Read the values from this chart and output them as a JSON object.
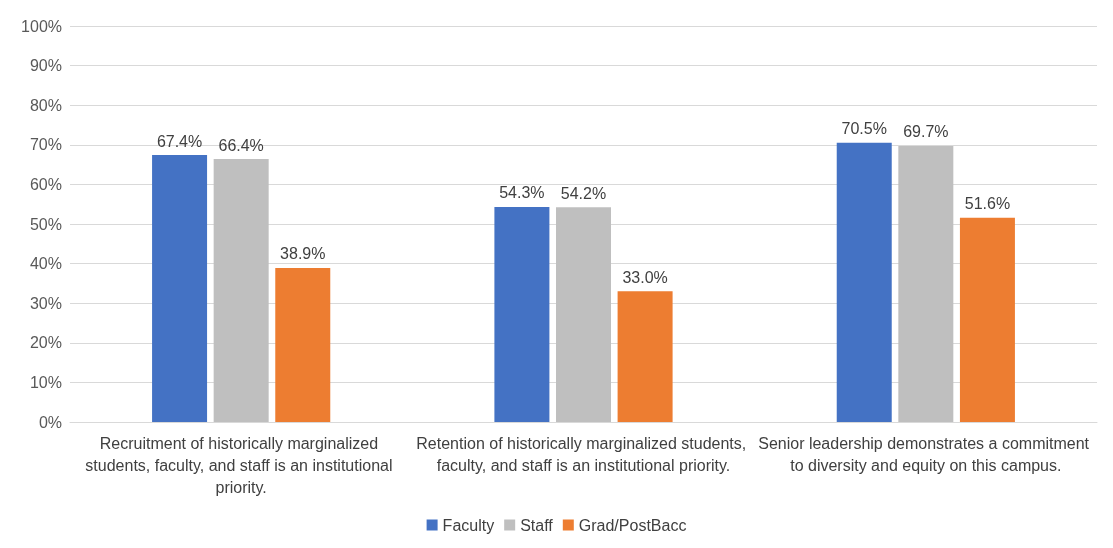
{
  "chart_data": {
    "type": "bar",
    "categories": [
      "Recruitment of historically marginalized students, faculty, and staff is an institutional priority.",
      "Retention of historically marginalized students, faculty, and staff is an institutional priority.",
      "Senior leadership demonstrates a commitment to diversity and equity on this campus."
    ],
    "series": [
      {
        "name": "Faculty",
        "color": "#4472c4",
        "values": [
          67.4,
          54.3,
          70.5
        ],
        "value_labels": [
          "67.4%",
          "54.3%",
          "70.5%"
        ]
      },
      {
        "name": "Staff",
        "color": "#bfbfbf",
        "values": [
          66.4,
          54.2,
          69.7
        ],
        "value_labels": [
          "66.4%",
          "54.2%",
          "69.7%"
        ]
      },
      {
        "name": "Grad/PostBacc",
        "color": "#ed7d31",
        "values": [
          38.9,
          33.0,
          51.6
        ],
        "value_labels": [
          "38.9%",
          "33.0%",
          "51.6%"
        ]
      }
    ],
    "ylim": [
      0,
      100
    ],
    "yticks": [
      {
        "value": 0,
        "label": "0%"
      },
      {
        "value": 10,
        "label": "10%"
      },
      {
        "value": 20,
        "label": "20%"
      },
      {
        "value": 30,
        "label": "30%"
      },
      {
        "value": 40,
        "label": "40%"
      },
      {
        "value": 50,
        "label": "50%"
      },
      {
        "value": 60,
        "label": "60%"
      },
      {
        "value": 70,
        "label": "70%"
      },
      {
        "value": 80,
        "label": "80%"
      },
      {
        "value": 90,
        "label": "90%"
      },
      {
        "value": 100,
        "label": "100%"
      }
    ],
    "grid": "y",
    "legend": "bottom"
  }
}
